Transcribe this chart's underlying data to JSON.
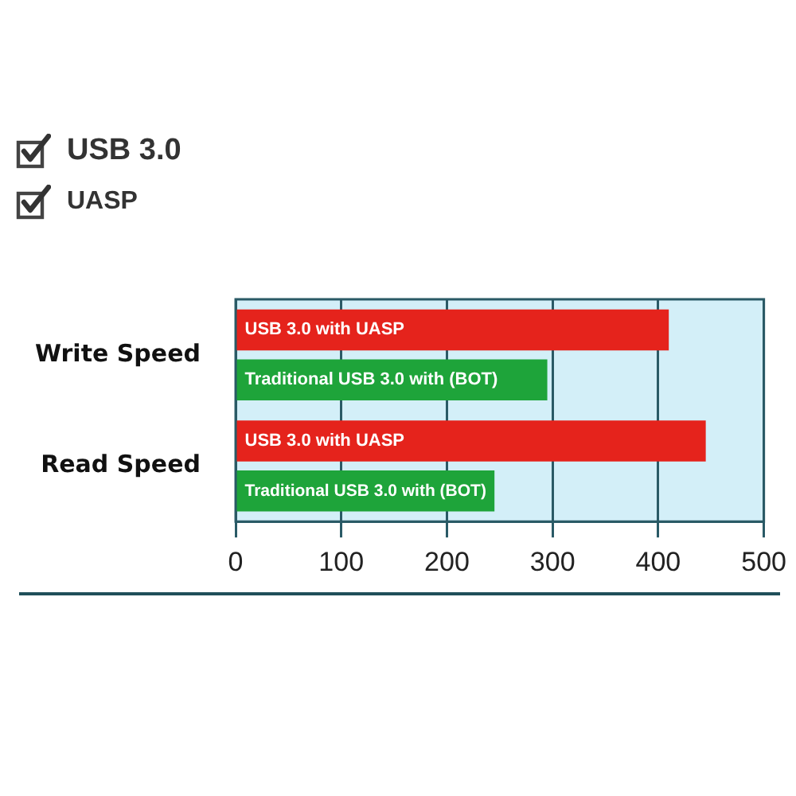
{
  "chart_data": {
    "type": "bar",
    "orientation": "horizontal",
    "categories": [
      "Write Speed",
      "Read Speed"
    ],
    "series": [
      {
        "name": "USB 3.0 with UASP",
        "color": "#e5231c",
        "values": [
          410,
          445
        ]
      },
      {
        "name": "Traditional USB 3.0 with (BOT)",
        "color": "#1ea43a",
        "values": [
          295,
          245
        ]
      }
    ],
    "xlim": [
      0,
      500
    ],
    "xticks": [
      0,
      100,
      200,
      300,
      400,
      500
    ],
    "grid": "x",
    "legend": false,
    "annotations": [
      "USB 3.0",
      "UASP"
    ]
  }
}
